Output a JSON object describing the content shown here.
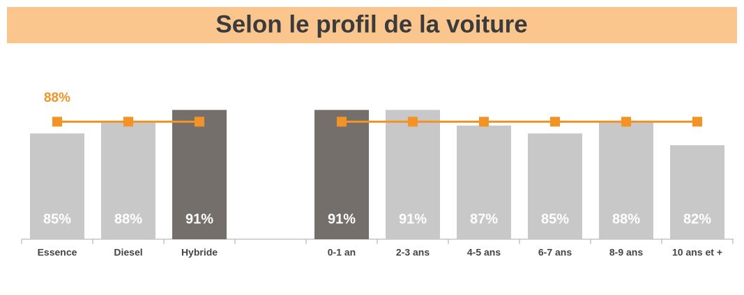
{
  "chart_data": {
    "type": "bar",
    "title": "Selon le profil de la voiture",
    "categories": [
      "Essence",
      "Diesel",
      "Hybride",
      null,
      "0-1 an",
      "2-3 ans",
      "4-5 ans",
      "6-7 ans",
      "8-9 ans",
      "10 ans et +"
    ],
    "values": [
      85,
      88,
      91,
      null,
      91,
      91,
      87,
      85,
      88,
      82
    ],
    "value_labels": [
      "85%",
      "88%",
      "91%",
      null,
      "91%",
      "91%",
      "87%",
      "85%",
      "88%",
      "82%"
    ],
    "colors": [
      "#c8c8c8",
      "#c8c8c8",
      "#756f6c",
      null,
      "#756f6c",
      "#c8c8c8",
      "#c8c8c8",
      "#c8c8c8",
      "#c8c8c8",
      "#c8c8c8"
    ],
    "line": {
      "values": [
        88,
        88,
        88,
        null,
        88,
        88,
        88,
        88,
        88,
        88
      ],
      "label": "88%",
      "color": "#f39325"
    },
    "ylim": [
      58,
      92
    ]
  }
}
